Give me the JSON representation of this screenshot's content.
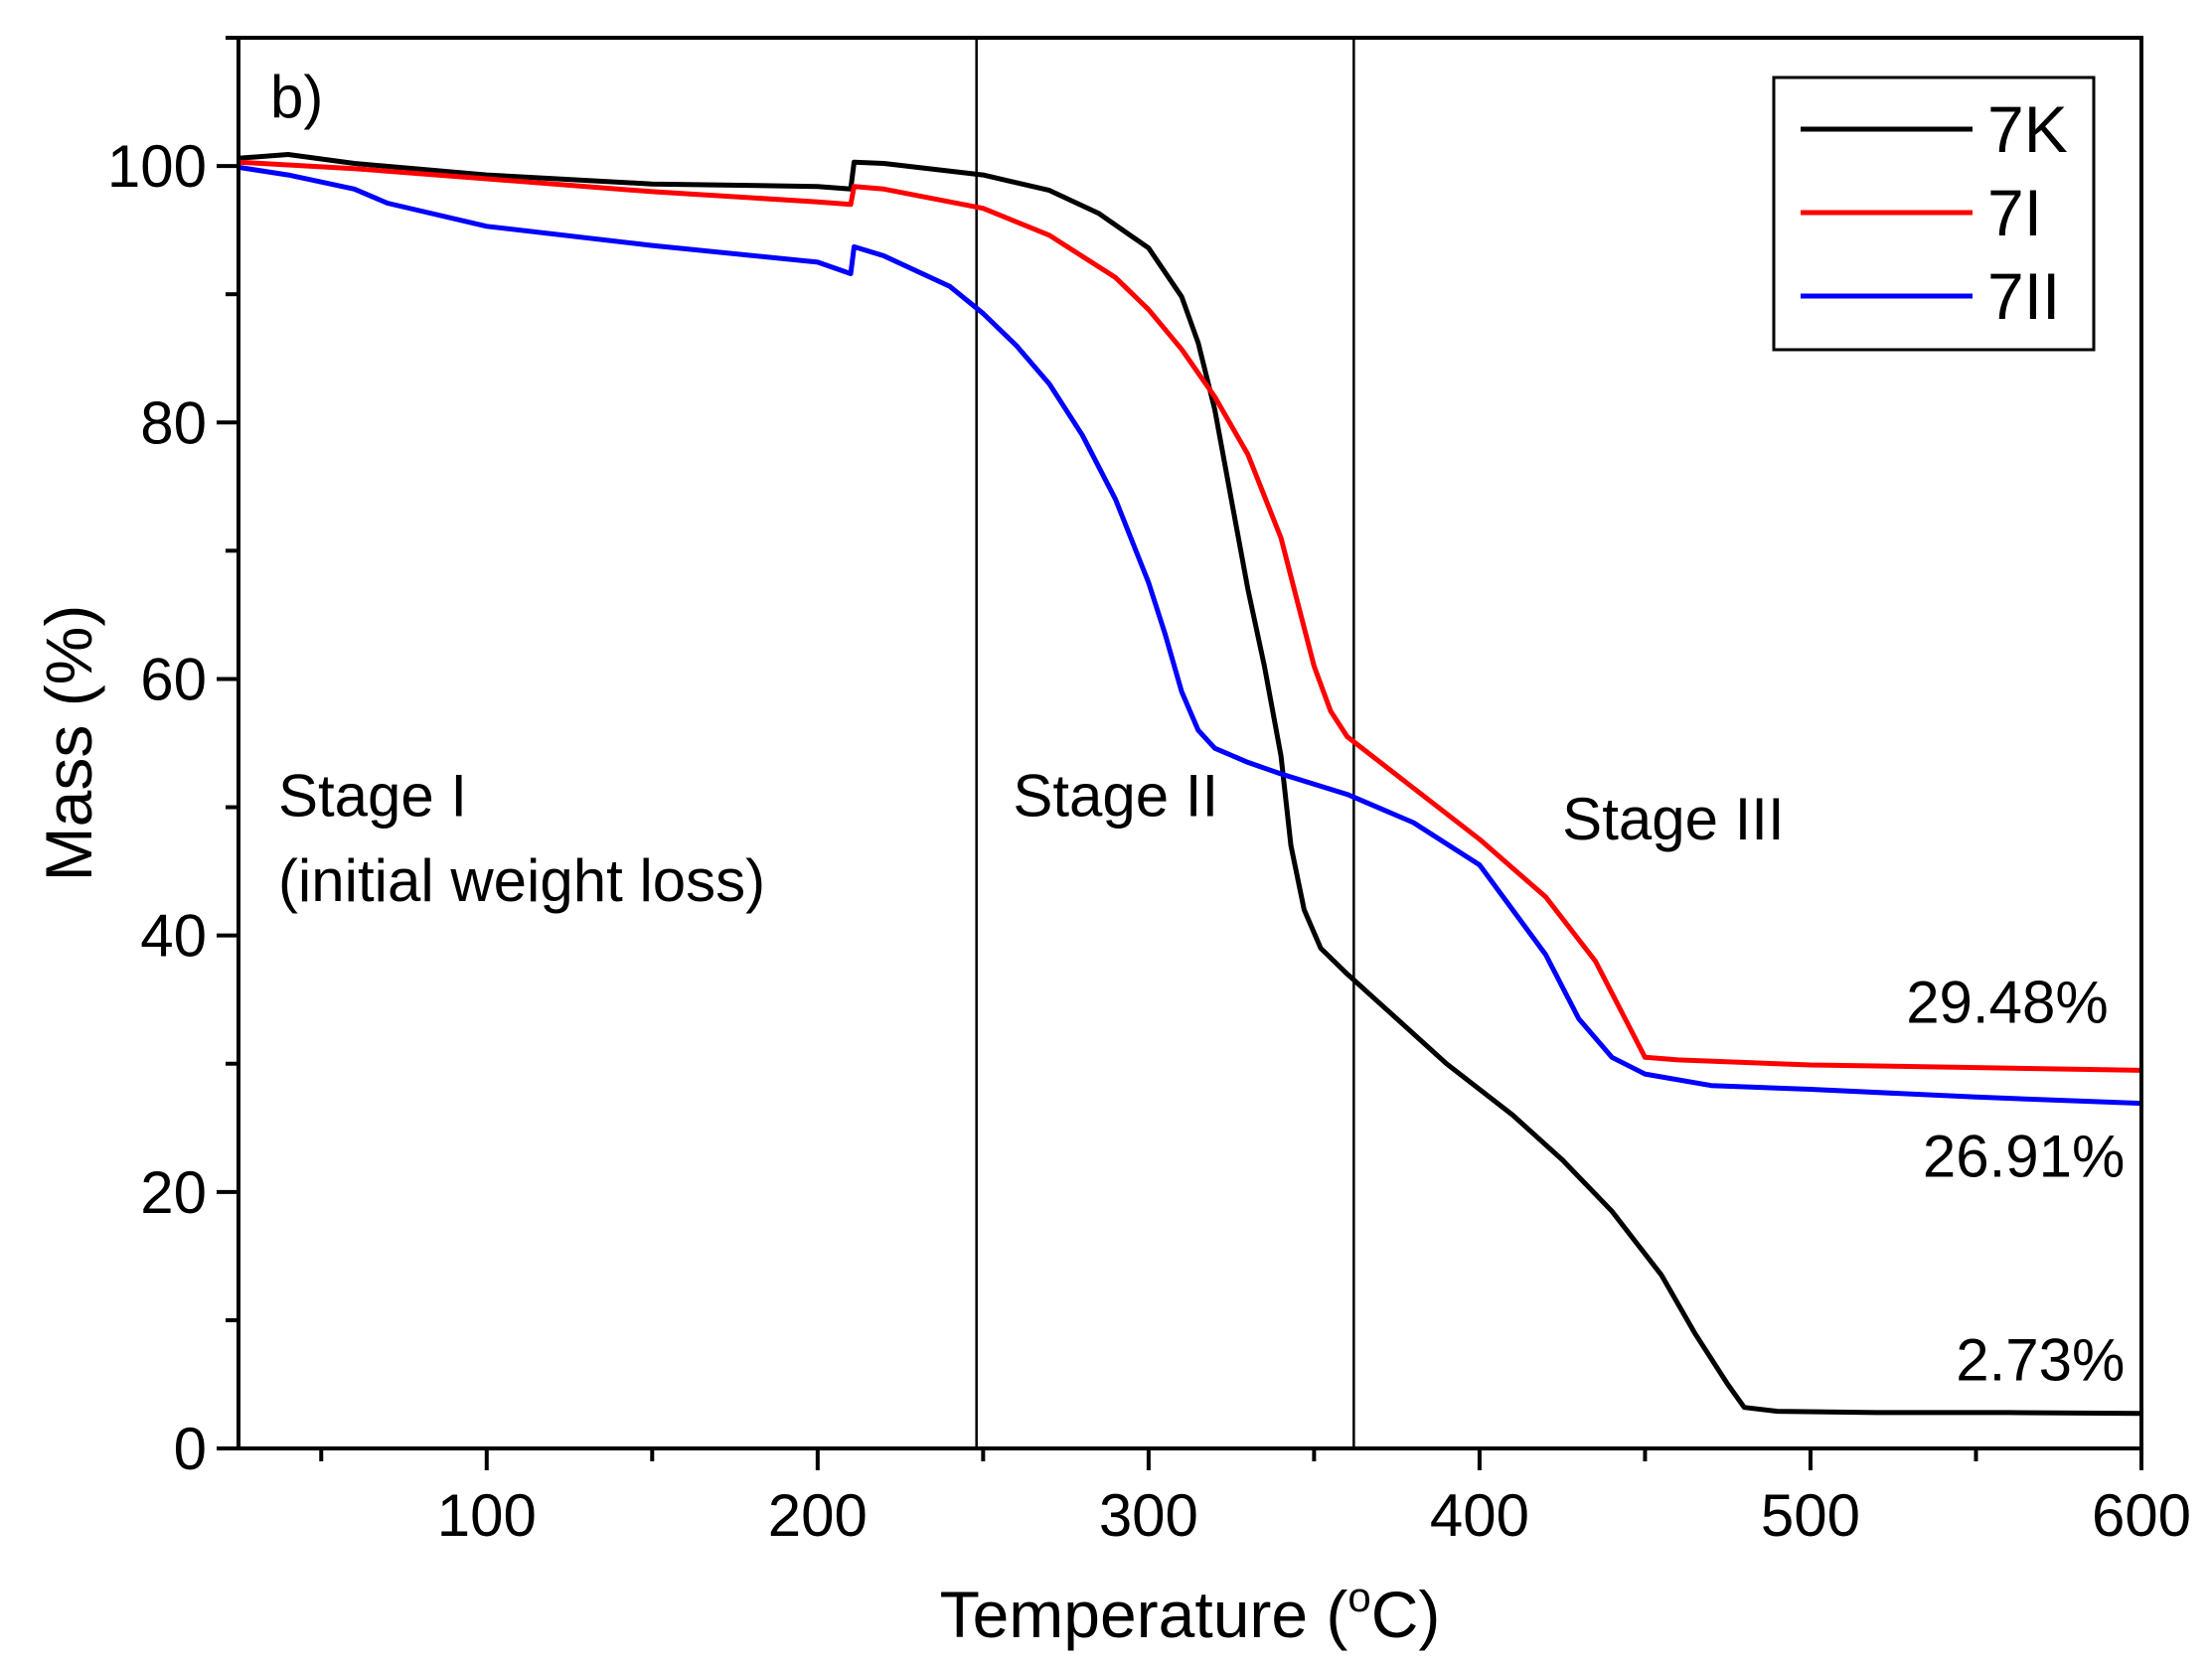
{
  "chart_data": {
    "type": "line",
    "panel_label": "b)",
    "xlabel": "Temperature (°C)",
    "xlabel_parts": {
      "main": "Temperature (",
      "sup": "o",
      "end": "C)"
    },
    "ylabel": "Mass (%)",
    "xlim": [
      25,
      600
    ],
    "ylim": [
      0,
      110
    ],
    "xticks": [
      100,
      200,
      300,
      400,
      500,
      600
    ],
    "yticks": [
      0,
      20,
      40,
      60,
      80,
      100
    ],
    "x_minor_step": 50,
    "y_minor_step": 10,
    "grid": false,
    "legend_position": "top-right",
    "vlines": [
      248,
      362
    ],
    "series": [
      {
        "name": "7K",
        "color": "#000000",
        "points": [
          [
            25,
            100.6
          ],
          [
            40,
            100.9
          ],
          [
            60,
            100.2
          ],
          [
            100,
            99.3
          ],
          [
            150,
            98.6
          ],
          [
            200,
            98.4
          ],
          [
            210,
            98.2
          ],
          [
            211,
            100.3
          ],
          [
            220,
            100.2
          ],
          [
            250,
            99.3
          ],
          [
            270,
            98.1
          ],
          [
            285,
            96.3
          ],
          [
            300,
            93.6
          ],
          [
            310,
            89.8
          ],
          [
            315,
            86.2
          ],
          [
            320,
            81
          ],
          [
            325,
            74
          ],
          [
            330,
            67
          ],
          [
            335,
            61
          ],
          [
            340,
            54
          ],
          [
            343,
            47
          ],
          [
            347,
            42
          ],
          [
            352,
            39
          ],
          [
            360,
            37
          ],
          [
            375,
            33.5
          ],
          [
            390,
            30
          ],
          [
            410,
            26
          ],
          [
            425,
            22.5
          ],
          [
            440,
            18.5
          ],
          [
            455,
            13.5
          ],
          [
            465,
            9
          ],
          [
            475,
            5
          ],
          [
            480,
            3.2
          ],
          [
            490,
            2.9
          ],
          [
            520,
            2.8
          ],
          [
            560,
            2.8
          ],
          [
            600,
            2.73
          ]
        ]
      },
      {
        "name": "7I",
        "color": "#ff0000",
        "points": [
          [
            25,
            100.3
          ],
          [
            60,
            99.8
          ],
          [
            100,
            99.0
          ],
          [
            150,
            98.0
          ],
          [
            200,
            97.2
          ],
          [
            210,
            97.0
          ],
          [
            211,
            98.4
          ],
          [
            220,
            98.2
          ],
          [
            250,
            96.7
          ],
          [
            270,
            94.6
          ],
          [
            290,
            91.3
          ],
          [
            300,
            88.8
          ],
          [
            310,
            85.7
          ],
          [
            320,
            82
          ],
          [
            330,
            77.5
          ],
          [
            340,
            71
          ],
          [
            345,
            66
          ],
          [
            350,
            61
          ],
          [
            355,
            57.5
          ],
          [
            360,
            55.5
          ],
          [
            380,
            51.5
          ],
          [
            400,
            47.5
          ],
          [
            420,
            43
          ],
          [
            435,
            38
          ],
          [
            445,
            33
          ],
          [
            450,
            30.5
          ],
          [
            460,
            30.3
          ],
          [
            500,
            29.9
          ],
          [
            550,
            29.7
          ],
          [
            600,
            29.48
          ]
        ]
      },
      {
        "name": "7II",
        "color": "#0000ff",
        "points": [
          [
            25,
            99.9
          ],
          [
            40,
            99.3
          ],
          [
            60,
            98.2
          ],
          [
            70,
            97.1
          ],
          [
            100,
            95.3
          ],
          [
            150,
            93.8
          ],
          [
            200,
            92.5
          ],
          [
            210,
            91.6
          ],
          [
            211,
            93.7
          ],
          [
            220,
            93.0
          ],
          [
            240,
            90.6
          ],
          [
            250,
            88.5
          ],
          [
            260,
            86
          ],
          [
            270,
            83
          ],
          [
            280,
            79
          ],
          [
            290,
            74
          ],
          [
            300,
            67.5
          ],
          [
            305,
            63.5
          ],
          [
            310,
            59
          ],
          [
            315,
            56
          ],
          [
            320,
            54.6
          ],
          [
            330,
            53.5
          ],
          [
            340,
            52.6
          ],
          [
            360,
            51
          ],
          [
            380,
            48.8
          ],
          [
            400,
            45.5
          ],
          [
            420,
            38.5
          ],
          [
            430,
            33.5
          ],
          [
            440,
            30.5
          ],
          [
            450,
            29.2
          ],
          [
            470,
            28.3
          ],
          [
            500,
            28.0
          ],
          [
            550,
            27.4
          ],
          [
            600,
            26.91
          ]
        ]
      }
    ],
    "annotations": [
      {
        "text": "Stage I",
        "x": 37,
        "y": 49.3
      },
      {
        "text": "(initial weight loss)",
        "x": 37,
        "y": 42.7
      },
      {
        "text": "Stage II",
        "x": 259,
        "y": 49.3
      },
      {
        "text": "Stage III",
        "x": 425,
        "y": 47.5
      },
      {
        "text": "29.48%",
        "x": 590,
        "y": 33.2
      },
      {
        "text": "26.91%",
        "x": 595,
        "y": 21.2
      },
      {
        "text": "2.73%",
        "x": 595,
        "y": 5.3
      }
    ]
  }
}
